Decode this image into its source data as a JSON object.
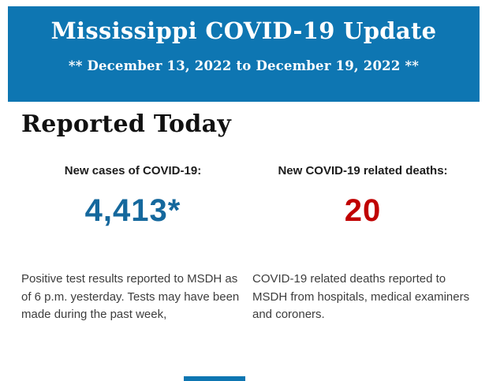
{
  "colors": {
    "banner_blue": "#0e76b2",
    "cases_blue": "#15689d",
    "deaths_red": "#c00000"
  },
  "banner": {
    "title": "Mississippi COVID-19 Update",
    "date_range": "** December 13, 2022 to December 19, 2022 **"
  },
  "section": {
    "heading": "Reported Today"
  },
  "stats": [
    {
      "label": "New cases of COVID-19:",
      "value": "4,413*",
      "description": "Positive test results reported to MSDH as of 6 p.m. yesterday. Tests may have been made during the past week,"
    },
    {
      "label": "New COVID-19 related deaths:",
      "value": "20",
      "description": "COVID-19 related deaths reported to MSDH from hospitals, medical examiners and coroners."
    }
  ]
}
